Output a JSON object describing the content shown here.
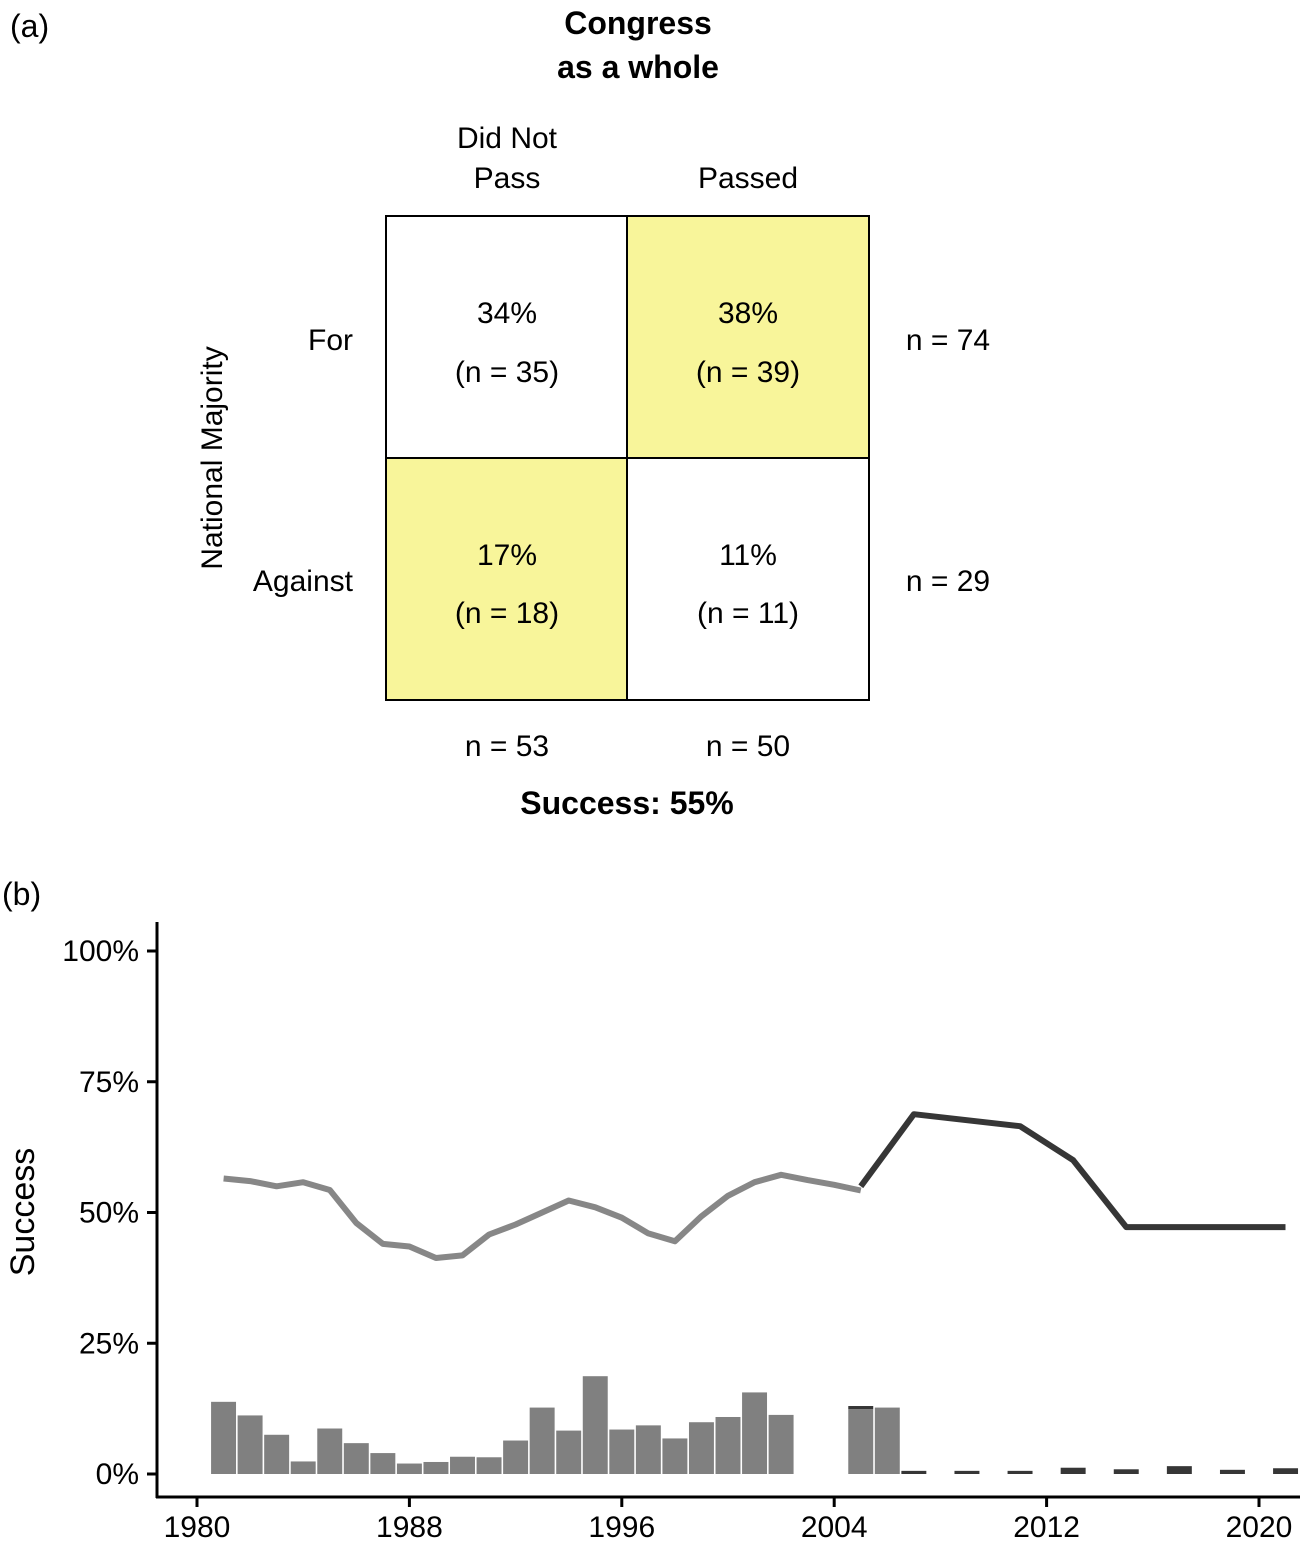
{
  "panel_a": {
    "panel_label": "(a)",
    "title_line1": "Congress",
    "title_line2": "as a whole",
    "col_header_did_not_pass_line1": "Did Not",
    "col_header_did_not_pass_line2": "Pass",
    "col_header_passed": "Passed",
    "row_axis_label": "National Majority",
    "row_label_for": "For",
    "row_label_against": "Against",
    "cells": {
      "for_did_not_pass": {
        "pct": "34%",
        "n": "(n = 35)"
      },
      "for_passed": {
        "pct": "38%",
        "n": "(n = 39)"
      },
      "against_did_not_pass": {
        "pct": "17%",
        "n": "(n = 18)"
      },
      "against_passed": {
        "pct": "11%",
        "n": "(n = 11)"
      }
    },
    "row_totals": {
      "for": "n = 74",
      "against": "n = 29"
    },
    "col_totals": {
      "did_not_pass": "n = 53",
      "passed": "n = 50"
    },
    "success": "Success: 55%",
    "highlight_color": "#f8f59a"
  },
  "panel_b": {
    "panel_label": "(b)",
    "ylabel": "Success"
  },
  "chart_data": [
    {
      "type": "table",
      "title": "Congress as a whole",
      "rows": [
        "For",
        "Against"
      ],
      "columns": [
        "Did Not Pass",
        "Passed"
      ],
      "values_pct": [
        [
          34,
          38
        ],
        [
          17,
          11
        ]
      ],
      "values_n": [
        [
          35,
          39
        ],
        [
          18,
          11
        ]
      ],
      "row_totals": [
        74,
        29
      ],
      "col_totals": [
        53,
        50
      ],
      "success_pct": 55
    },
    {
      "type": "line",
      "ylabel": "Success",
      "xlim": [
        1979.2,
        2023.2
      ],
      "ylim": [
        0,
        100
      ],
      "x_ticks": [
        1980,
        1988,
        1996,
        2004,
        2012,
        2020
      ],
      "y_ticks": [
        0,
        25,
        50,
        75,
        100
      ],
      "y_tick_labels": [
        "0%",
        "25%",
        "50%",
        "75%",
        "100%"
      ],
      "grid": false,
      "series": [
        {
          "color": "#878787",
          "x": [
            1981,
            1982,
            1983,
            1984,
            1985,
            1986,
            1987,
            1988,
            1989,
            1990,
            1991,
            1992,
            1993,
            1994,
            1995,
            1996,
            1997,
            1998,
            1999,
            2000,
            2001,
            2002,
            2003,
            2004,
            2005
          ],
          "y": [
            56.5,
            56,
            55,
            55.8,
            54.3,
            48,
            44,
            43.5,
            41.3,
            41.8,
            45.8,
            47.7,
            50,
            52.3,
            51,
            49,
            46,
            44.5,
            49.3,
            53.2,
            55.8,
            57.2,
            56.2,
            55.3,
            54.2
          ]
        },
        {
          "color": "#363636",
          "x": [
            2005,
            2007,
            2011,
            2013,
            2015,
            2021
          ],
          "y": [
            55,
            68.8,
            66.5,
            60,
            47.2,
            47.2
          ]
        }
      ],
      "bars": {
        "light_color": "#808080",
        "dark_color": "#363636",
        "light": {
          "x": [
            1981,
            1982,
            1983,
            1984,
            1985,
            1986,
            1987,
            1988,
            1989,
            1990,
            1991,
            1992,
            1993,
            1994,
            1995,
            1996,
            1997,
            1998,
            1999,
            2000,
            2001,
            2002,
            2005,
            2006
          ],
          "y": [
            13.8,
            11.2,
            7.5,
            2.4,
            8.7,
            5.9,
            4.0,
            2.0,
            2.3,
            3.3,
            3.2,
            6.4,
            12.7,
            8.3,
            18.7,
            8.5,
            9.3,
            6.8,
            9.9,
            10.9,
            15.6,
            11.3,
            12.4,
            12.7
          ]
        },
        "dark": {
          "x": [
            2005,
            2007,
            2009,
            2011,
            2013,
            2015,
            2017,
            2019,
            2021
          ],
          "bottom": [
            12.4,
            0,
            0,
            0,
            0,
            0,
            0,
            0,
            0
          ],
          "y": [
            0.6,
            0.6,
            0.6,
            0.6,
            1.2,
            0.9,
            1.5,
            0.8,
            1.1
          ]
        }
      }
    }
  ]
}
